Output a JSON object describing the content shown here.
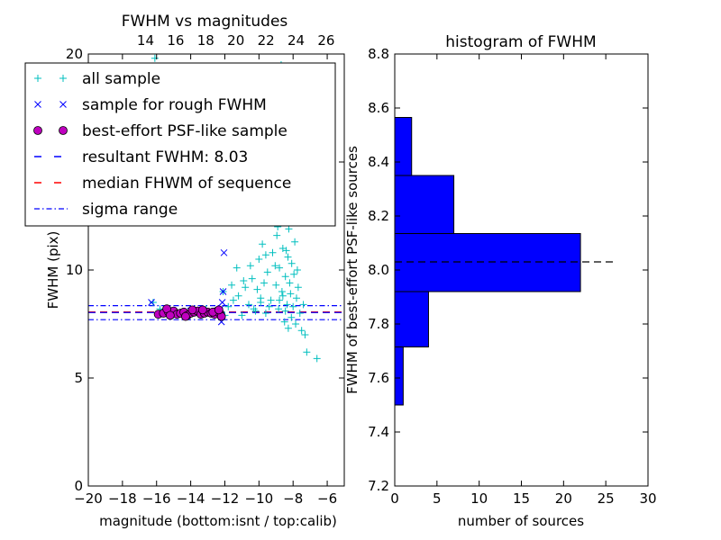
{
  "chart_data": [
    {
      "type": "scatter",
      "title": "FWHM vs magnitudes",
      "xlabel": "magnitude (bottom:isnt / top:calib)",
      "ylabel": "FWHM (pix)",
      "xlim": [
        -20,
        -5
      ],
      "ylim": [
        0,
        20
      ],
      "xticks": [
        -20,
        -18,
        -16,
        -14,
        -12,
        -10,
        -8,
        -6
      ],
      "xtick_labels": [
        "−20",
        "−18",
        "−16",
        "−14",
        "−12",
        "−10",
        "−8",
        "−6"
      ],
      "yticks": [
        0,
        5,
        10,
        15,
        20
      ],
      "ytick_labels": [
        "0",
        "5",
        "10",
        "15",
        "20"
      ],
      "top_axis": {
        "xlim": [
          10.2,
          27.2
        ],
        "ticks": [
          14,
          16,
          18,
          20,
          22,
          24,
          26
        ],
        "tick_labels": [
          "14",
          "16",
          "18",
          "20",
          "22",
          "24",
          "26"
        ]
      },
      "legend": {
        "placement": "upper-left",
        "entries": [
          {
            "label": "all sample",
            "marker": "plus",
            "color": "#00bfbf"
          },
          {
            "label": "sample for rough FWHM",
            "marker": "x",
            "color": "#0000ff"
          },
          {
            "label": "best-effort PSF-like sample",
            "marker": "circle",
            "color": "#bf00bf"
          },
          {
            "label": "resultant FWHM: 8.03",
            "marker": "dash",
            "color": "#0000ff"
          },
          {
            "label": "median FHWM of sequence",
            "marker": "dash",
            "color": "#ff0000"
          },
          {
            "label": "sigma range",
            "marker": "dashdot",
            "color": "#0000ff"
          }
        ]
      },
      "lines": {
        "resultant_fwhm": 8.03,
        "median_fwhm": 8.05,
        "sigma_range": [
          7.7,
          8.35
        ]
      },
      "series": [
        {
          "name": "all sample",
          "marker": "plus",
          "color": "#00bfbf",
          "points": [
            [
              -16.2,
              8.5
            ],
            [
              -15.8,
              8.2
            ],
            [
              -15.2,
              8.0
            ],
            [
              -14.6,
              8.0
            ],
            [
              -14.1,
              8.1
            ],
            [
              -13.6,
              8.0
            ],
            [
              -13.1,
              8.2
            ],
            [
              -12.6,
              8.0
            ],
            [
              -12.3,
              8.1
            ],
            [
              -12.0,
              7.9
            ],
            [
              -11.8,
              8.3
            ],
            [
              -11.5,
              8.6
            ],
            [
              -11.2,
              8.8
            ],
            [
              -11.0,
              7.9
            ],
            [
              -10.8,
              9.2
            ],
            [
              -10.6,
              8.4
            ],
            [
              -10.4,
              9.6
            ],
            [
              -10.2,
              8.1
            ],
            [
              -10.0,
              10.5
            ],
            [
              -9.9,
              8.7
            ],
            [
              -9.8,
              11.2
            ],
            [
              -9.6,
              8.0
            ],
            [
              -9.5,
              9.9
            ],
            [
              -9.4,
              12.5
            ],
            [
              -9.3,
              8.6
            ],
            [
              -9.2,
              10.8
            ],
            [
              -9.1,
              13.2
            ],
            [
              -9.0,
              9.3
            ],
            [
              -8.95,
              11.6
            ],
            [
              -8.9,
              14.8
            ],
            [
              -8.85,
              8.2
            ],
            [
              -8.8,
              10.1
            ],
            [
              -8.75,
              12.9
            ],
            [
              -8.7,
              15.6
            ],
            [
              -8.65,
              9.0
            ],
            [
              -8.6,
              11.0
            ],
            [
              -8.55,
              13.8
            ],
            [
              -8.5,
              7.6
            ],
            [
              -8.48,
              16.5
            ],
            [
              -8.45,
              9.7
            ],
            [
              -8.4,
              12.2
            ],
            [
              -8.38,
              14.3
            ],
            [
              -8.35,
              8.4
            ],
            [
              -8.3,
              10.6
            ],
            [
              -8.28,
              7.3
            ],
            [
              -8.25,
              11.9
            ],
            [
              -8.2,
              9.4
            ],
            [
              -8.18,
              13.1
            ],
            [
              -8.15,
              8.9
            ],
            [
              -8.1,
              7.8
            ],
            [
              -8.08,
              10.3
            ],
            [
              -8.05,
              12.4
            ],
            [
              -8.0,
              8.3
            ],
            [
              -7.95,
              9.8
            ],
            [
              -7.9,
              11.3
            ],
            [
              -7.85,
              7.5
            ],
            [
              -7.8,
              8.7
            ],
            [
              -7.75,
              10.0
            ],
            [
              -7.7,
              9.2
            ],
            [
              -7.6,
              8.0
            ],
            [
              -7.5,
              7.2
            ],
            [
              -7.4,
              8.4
            ],
            [
              -7.3,
              7.0
            ],
            [
              -7.2,
              6.2
            ],
            [
              -8.6,
              17.8
            ],
            [
              -8.7,
              19.5
            ],
            [
              -8.5,
              15.0
            ],
            [
              -8.9,
              12.0
            ],
            [
              -9.05,
              10.2
            ],
            [
              -8.3,
              13.5
            ],
            [
              -8.2,
              14.0
            ],
            [
              -8.4,
              10.9
            ],
            [
              -9.6,
              10.7
            ],
            [
              -9.7,
              9.4
            ],
            [
              -10.1,
              9.1
            ],
            [
              -10.5,
              10.2
            ],
            [
              -10.9,
              9.5
            ],
            [
              -11.3,
              10.1
            ],
            [
              -11.6,
              9.3
            ],
            [
              -12.1,
              9.0
            ],
            [
              -6.6,
              5.9
            ],
            [
              -16.1,
              19.8
            ],
            [
              -8.8,
              8.6
            ],
            [
              -8.6,
              8.8
            ],
            [
              -8.45,
              8.1
            ],
            [
              -9.4,
              8.3
            ],
            [
              -9.9,
              8.5
            ],
            [
              -10.3,
              8.2
            ]
          ]
        },
        {
          "name": "sample for rough FWHM",
          "marker": "x",
          "color": "#0000ff",
          "points": [
            [
              -16.3,
              8.5
            ],
            [
              -15.7,
              8.0
            ],
            [
              -15.1,
              8.1
            ],
            [
              -14.5,
              8.0
            ],
            [
              -14.0,
              8.1
            ],
            [
              -13.4,
              8.0
            ],
            [
              -12.9,
              8.0
            ],
            [
              -12.5,
              8.1
            ],
            [
              -12.2,
              7.6
            ],
            [
              -12.15,
              8.5
            ],
            [
              -12.1,
              9.0
            ],
            [
              -12.05,
              10.8
            ],
            [
              -12.25,
              8.2
            ]
          ]
        },
        {
          "name": "best-effort PSF-like sample",
          "marker": "circle",
          "color": "#bf00bf",
          "points": [
            [
              -15.9,
              7.95
            ],
            [
              -15.6,
              8.0
            ],
            [
              -15.3,
              8.05
            ],
            [
              -15.0,
              8.1
            ],
            [
              -14.8,
              7.95
            ],
            [
              -14.6,
              8.0
            ],
            [
              -14.4,
              8.05
            ],
            [
              -14.2,
              7.9
            ],
            [
              -14.0,
              8.0
            ],
            [
              -13.8,
              8.05
            ],
            [
              -13.6,
              8.1
            ],
            [
              -13.4,
              7.95
            ],
            [
              -13.2,
              8.0
            ],
            [
              -13.0,
              8.05
            ],
            [
              -12.8,
              8.0
            ],
            [
              -12.6,
              7.95
            ],
            [
              -12.45,
              8.1
            ],
            [
              -12.3,
              8.0
            ],
            [
              -12.2,
              7.85
            ],
            [
              -15.4,
              8.2
            ],
            [
              -14.3,
              7.85
            ],
            [
              -13.3,
              8.15
            ],
            [
              -12.7,
              8.05
            ],
            [
              -12.35,
              8.15
            ],
            [
              -15.2,
              7.9
            ],
            [
              -13.9,
              8.15
            ]
          ]
        }
      ]
    },
    {
      "type": "bar",
      "orientation": "horizontal",
      "title": "histogram of FWHM",
      "xlabel": "number of sources",
      "ylabel": "FWHM of best-effort PSF-like sources",
      "xlim": [
        0,
        30
      ],
      "ylim": [
        7.2,
        8.8
      ],
      "xticks": [
        0,
        5,
        10,
        15,
        20,
        25,
        30
      ],
      "xtick_labels": [
        "0",
        "5",
        "10",
        "15",
        "20",
        "25",
        "30"
      ],
      "yticks": [
        7.2,
        7.4,
        7.6,
        7.8,
        8.0,
        8.2,
        8.4,
        8.6,
        8.8
      ],
      "ytick_labels": [
        "7.2",
        "7.4",
        "7.6",
        "7.8",
        "8.0",
        "8.2",
        "8.4",
        "8.6",
        "8.8"
      ],
      "color": "#0000ff",
      "bins": [
        {
          "from": 7.5,
          "to": 7.715,
          "count": 1
        },
        {
          "from": 7.715,
          "to": 7.92,
          "count": 4
        },
        {
          "from": 7.92,
          "to": 8.135,
          "count": 22
        },
        {
          "from": 8.135,
          "to": 8.35,
          "count": 7
        },
        {
          "from": 8.35,
          "to": 8.565,
          "count": 2
        }
      ],
      "reference_line": {
        "y": 8.03,
        "x_range": [
          0,
          26
        ]
      }
    }
  ]
}
